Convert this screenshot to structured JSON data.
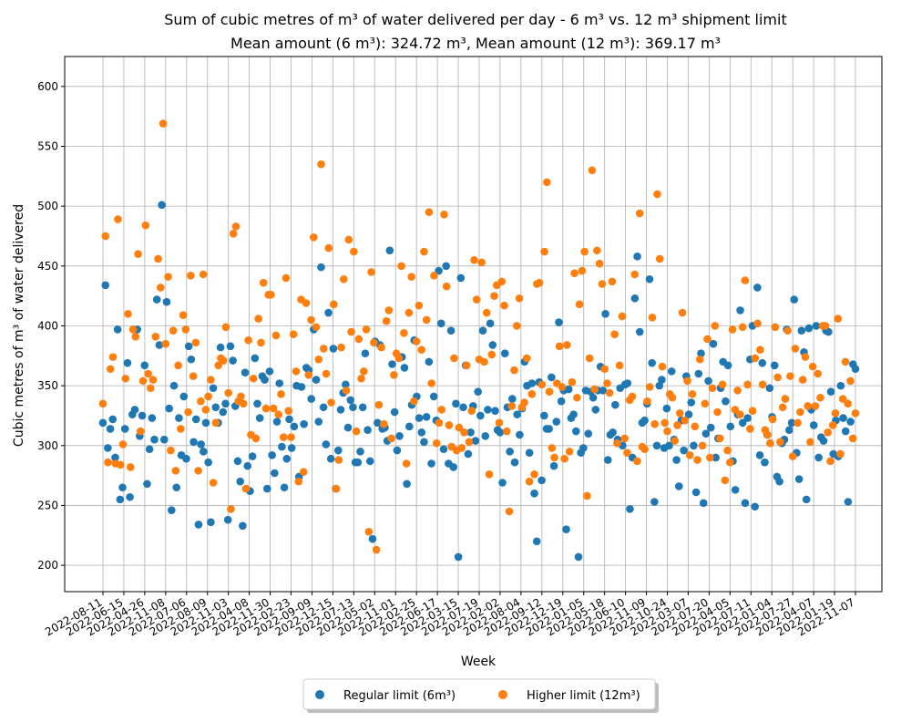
{
  "chart_data": {
    "type": "scatter",
    "title_line1": "Sum of cubic metres of m³ of water delivered per day - 6 m³ vs. 12 m³ shipment limit",
    "title_line2": "Mean amount (6 m³): 324.72 m³, Mean amount (12 m³): 369.17 m³",
    "xlabel": "Week",
    "ylabel": "Cubic metres of m³ of water delivered",
    "ylim": [
      178,
      625
    ],
    "yticks": [
      200,
      250,
      300,
      350,
      400,
      450,
      500,
      550,
      600
    ],
    "grid": true,
    "legend_position": "bottom-center",
    "xtick_labels": [
      "2022-08-11",
      "2022-06-15",
      "2022-04-26",
      "2022-11-08",
      "2022-07-06",
      "2022-08-09",
      "2022-11-03",
      "2022-04-08",
      "2022-11-30",
      "2022-02-23",
      "2022-09-09",
      "2022-12-15",
      "2022-07-13",
      "2022-05-02",
      "2022-11-01",
      "2022-02-25",
      "2022-06-17",
      "2022-03-15",
      "2022-07-19",
      "2022-02-02",
      "2022-08-04",
      "2022-09-12",
      "2022-12-19",
      "2022-01-05",
      "2022-05-18",
      "2022-06-10",
      "2022-11-09",
      "2022-10-24",
      "2022-03-07",
      "2022-07-20",
      "2022-04-05",
      "2022-07-11",
      "2022-01-04",
      "2022-07-27",
      "2022-04-07",
      "2022-01-19",
      "2022-11-07"
    ],
    "series": [
      {
        "name": "Regular limit (6m³)",
        "color": "#1f77b4",
        "y": [
          319,
          434,
          298,
          314,
          322,
          290,
          397,
          255,
          265,
          314,
          369,
          257,
          326,
          330,
          397,
          308,
          325,
          367,
          268,
          297,
          323,
          305,
          422,
          384,
          501,
          305,
          420,
          331,
          246,
          350,
          265,
          323,
          292,
          341,
          289,
          383,
          372,
          303,
          322,
          234,
          301,
          295,
          319,
          286,
          236,
          348,
          332,
          319,
          382,
          328,
          335,
          238,
          383,
          371,
          333,
          287,
          270,
          233,
          361,
          283,
          262,
          291,
          373,
          335,
          323,
          358,
          355,
          264,
          362,
          292,
          277,
          320,
          352,
          299,
          265,
          289,
          322,
          298,
          316,
          350,
          274,
          349,
          318,
          365,
          363,
          339,
          397,
          355,
          320,
          449,
          332,
          301,
          411,
          289,
          381,
          264,
          296,
          330,
          344,
          351,
          315,
          338,
          332,
          286,
          286,
          295,
          332,
          377,
          313,
          287,
          222,
          387,
          319,
          384,
          314,
          315,
          304,
          463,
          368,
          328,
          296,
          308,
          374,
          365,
          268,
          316,
          334,
          388,
          341,
          323,
          311,
          303,
          324,
          370,
          285,
          341,
          321,
          446,
          402,
          297,
          450,
          285,
          396,
          282,
          335,
          207,
          440,
          332,
          367,
          293,
          311,
          333,
          304,
          345,
          325,
          396,
          308,
          330,
          402,
          384,
          329,
          313,
          311,
          269,
          377,
          332,
          295,
          339,
          286,
          326,
          309,
          331,
          370,
          350,
          294,
          352,
          260,
          220,
          353,
          271,
          325,
          314,
          314,
          357,
          283,
          320,
          403,
          337,
          346,
          230,
          347,
          323,
          326,
          312,
          207,
          294,
          298,
          346,
          310,
          345,
          340,
          330,
          346,
          366,
          346,
          410,
          288,
          309,
          311,
          334,
          305,
          348,
          300,
          351,
          352,
          247,
          290,
          423,
          458,
          395,
          319,
          321,
          335,
          439,
          369,
          253,
          300,
          350,
          355,
          298,
          331,
          300,
          362,
          305,
          288,
          266,
          321,
          296,
          358,
          326,
          336,
          300,
          261,
          360,
          377,
          252,
          310,
          354,
          315,
          385,
          290,
          306,
          348,
          370,
          337,
          367,
          316,
          287,
          263,
          326,
          413,
          319,
          252,
          323,
          372,
          400,
          249,
          432,
          292,
          369,
          286,
          309,
          348,
          324,
          367,
          274,
          270,
          302,
          305,
          397,
          313,
          319,
          422,
          294,
          272,
          396,
          378,
          255,
          398,
          330,
          317,
          400,
          290,
          307,
          304,
          396,
          395,
          345,
          293,
          321,
          291,
          350,
          323,
          312,
          253,
          320,
          368,
          364
        ]
      },
      {
        "name": "Higher limit (12m³)",
        "color": "#ff7f0e",
        "y": [
          335,
          475,
          286,
          364,
          374,
          285,
          489,
          284,
          301,
          356,
          410,
          282,
          397,
          391,
          460,
          312,
          354,
          484,
          360,
          348,
          355,
          391,
          456,
          432,
          569,
          385,
          441,
          296,
          396,
          279,
          367,
          314,
          409,
          397,
          328,
          442,
          358,
          386,
          279,
          337,
          443,
          330,
          341,
          355,
          269,
          319,
          367,
          373,
          371,
          399,
          344,
          247,
          477,
          483,
          337,
          341,
          335,
          264,
          388,
          309,
          356,
          306,
          406,
          386,
          436,
          331,
          426,
          426,
          331,
          392,
          326,
          343,
          307,
          440,
          329,
          307,
          393,
          362,
          270,
          422,
          278,
          419,
          359,
          405,
          474,
          399,
          372,
          535,
          381,
          360,
          465,
          336,
          418,
          264,
          288,
          382,
          439,
          346,
          472,
          395,
          462,
          312,
          389,
          356,
          362,
          397,
          228,
          445,
          386,
          213,
          334,
          382,
          318,
          404,
          413,
          306,
          359,
          377,
          373,
          450,
          394,
          285,
          411,
          441,
          337,
          387,
          417,
          380,
          462,
          405,
          495,
          352,
          442,
          302,
          319,
          330,
          493,
          433,
          317,
          299,
          373,
          296,
          315,
          298,
          311,
          367,
          303,
          329,
          455,
          422,
          372,
          453,
          370,
          411,
          276,
          376,
          425,
          434,
          319,
          437,
          417,
          312,
          245,
          333,
          363,
          400,
          423,
          332,
          336,
          373,
          270,
          343,
          276,
          435,
          436,
          351,
          462,
          520,
          345,
          298,
          290,
          352,
          383,
          349,
          289,
          384,
          295,
          353,
          444,
          340,
          418,
          446,
          462,
          258,
          373,
          530,
          347,
          463,
          452,
          435,
          364,
          352,
          344,
          437,
          393,
          302,
          367,
          408,
          306,
          294,
          338,
          341,
          443,
          287,
          494,
          299,
          297,
          337,
          349,
          407,
          318,
          510,
          456,
          366,
          319,
          312,
          343,
          340,
          304,
          317,
          327,
          411,
          321,
          354,
          292,
          343,
          316,
          288,
          372,
          300,
          335,
          389,
          290,
          348,
          400,
          328,
          306,
          351,
          271,
          296,
          286,
          397,
          330,
          346,
          326,
          399,
          438,
          351,
          314,
          329,
          373,
          402,
          380,
          351,
          313,
          309,
          302,
          322,
          399,
          357,
          303,
          332,
          339,
          396,
          358,
          291,
          381,
          319,
          328,
          355,
          374,
          333,
          303,
          366,
          333,
          360,
          340,
          400,
          400,
          311,
          287,
          317,
          327,
          406,
          293,
          339,
          370,
          335,
          354,
          306,
          327
        ]
      }
    ]
  }
}
